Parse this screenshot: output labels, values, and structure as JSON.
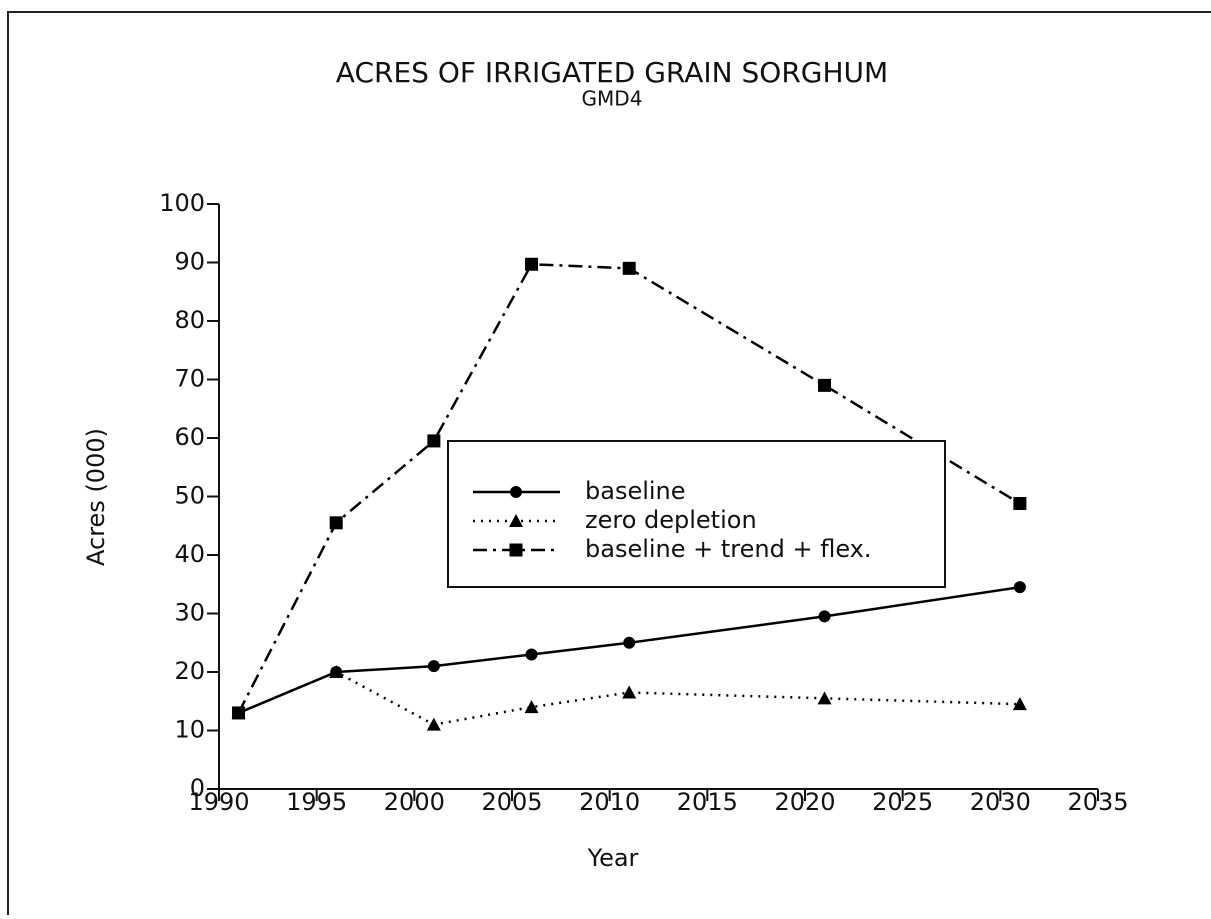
{
  "chart_data": {
    "type": "line",
    "title": "ACRES OF IRRIGATED GRAIN SORGHUM",
    "subtitle": "GMD4",
    "x_label": "Year",
    "y_label": "Acres (000)",
    "x": [
      1991,
      1996,
      2001,
      2006,
      2011,
      2021,
      2031
    ],
    "series": [
      {
        "name": "baseline",
        "color": "#000000",
        "line_style": "solid",
        "marker": "circle",
        "values": [
          13,
          20,
          21,
          23,
          25,
          29.5,
          34.5
        ]
      },
      {
        "name": "zero depletion",
        "color": "#000000",
        "line_style": "dotted",
        "marker": "triangle",
        "values": [
          13,
          20,
          11,
          14,
          16.5,
          15.5,
          14.5
        ]
      },
      {
        "name": "baseline + trend + flex.",
        "color": "#000000",
        "line_style": "dashdot",
        "marker": "square",
        "values": [
          13,
          45.5,
          59.5,
          89.7,
          89,
          69,
          48.8
        ]
      }
    ],
    "xlim": [
      1990,
      2035
    ],
    "xticks": [
      1990,
      1995,
      2000,
      2005,
      2010,
      2015,
      2020,
      2025,
      2030,
      2035
    ],
    "ylim": [
      0,
      100
    ],
    "yticks": [
      0,
      10,
      20,
      30,
      40,
      50,
      60,
      70,
      80,
      90,
      100
    ],
    "grid": false,
    "legend": "center"
  }
}
